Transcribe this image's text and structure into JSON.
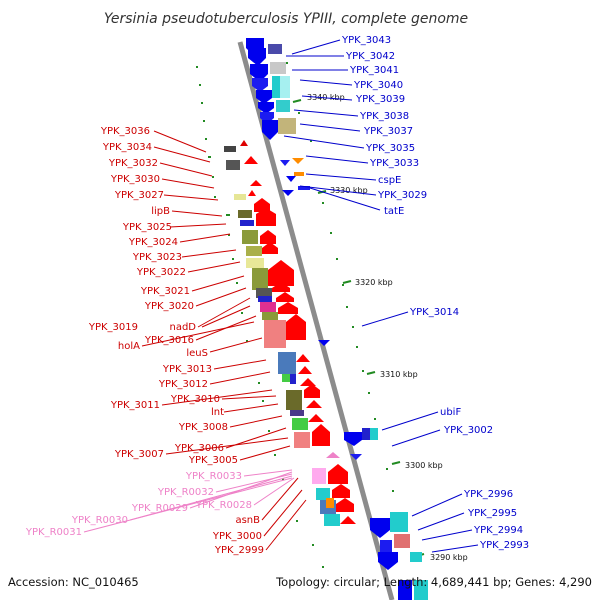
{
  "title": "Yersinia pseudotuberculosis YPIII, complete genome",
  "footer": {
    "accession": "Accession: NC_010465",
    "topology": "Topology: circular; Length: 4,689,441 bp; Genes: 4,290"
  },
  "colors": {
    "forward_label": "#0000cc",
    "reverse_label": "#cc0000",
    "rna_label": "#ee82c8",
    "backbone": "#8c8c8c",
    "tick": "#228b22"
  },
  "ticks": [
    "3340 kbp",
    "3330 kbp",
    "3320 kbp",
    "3310 kbp",
    "3300 kbp",
    "3290 kbp"
  ],
  "right_labels": [
    "YPK_3043",
    "YPK_3042",
    "YPK_3041",
    "YPK_3040",
    "YPK_3039",
    "YPK_3038",
    "YPK_3037",
    "YPK_3035",
    "YPK_3033",
    "cspE",
    "YPK_3029",
    "tatE",
    "YPK_3014",
    "ubiF",
    "YPK_3002",
    "YPK_2996",
    "YPK_2995",
    "YPK_2994",
    "YPK_2993"
  ],
  "left_labels": [
    "YPK_3036",
    "YPK_3034",
    "YPK_3032",
    "YPK_3030",
    "YPK_3027",
    "lipB",
    "YPK_3025",
    "YPK_3024",
    "YPK_3023",
    "YPK_3022",
    "YPK_3021",
    "YPK_3020",
    "YPK_3019",
    "nadD",
    "YPK_3016",
    "holA",
    "leuS",
    "YPK_3013",
    "YPK_3012",
    "YPK_3011",
    "YPK_3010",
    "lnt",
    "YPK_3008",
    "YPK_3006",
    "YPK_3007",
    "YPK_3005",
    "asnB",
    "YPK_3000",
    "YPK_2999"
  ],
  "rna_labels": [
    "YPK_R0033",
    "YPK_R0032",
    "YPK_R0028",
    "YPK_R0029",
    "YPK_R0030",
    "YPK_R0031"
  ]
}
